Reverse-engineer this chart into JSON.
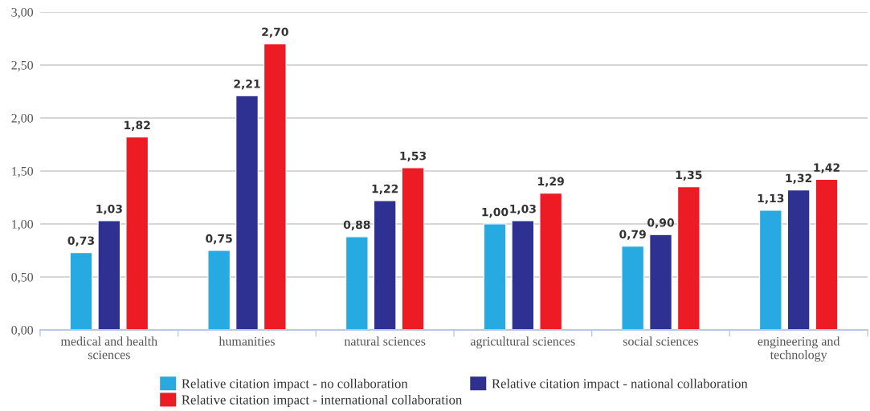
{
  "chart_data": {
    "type": "bar",
    "categories": [
      "medical and health sciences",
      "humanities",
      "natural sciences",
      "agricultural sciences",
      "social sciences",
      "engineering and technology"
    ],
    "series": [
      {
        "name": "Relative citation impact - no collaboration",
        "color": "#27aae1",
        "values": [
          0.73,
          0.75,
          0.88,
          1.0,
          0.79,
          1.13
        ],
        "value_labels": [
          "0,73",
          "0,75",
          "0,88",
          "1,00",
          "0,79",
          "1,13"
        ]
      },
      {
        "name": "Relative citation impact - national collaboration",
        "color": "#2e3192",
        "values": [
          1.03,
          2.21,
          1.22,
          1.03,
          0.9,
          1.32
        ],
        "value_labels": [
          "1,03",
          "2,21",
          "1,22",
          "1,03",
          "0,90",
          "1,32"
        ]
      },
      {
        "name": "Relative citation impact - international collaboration",
        "color": "#ed1c24",
        "values": [
          1.82,
          2.7,
          1.53,
          1.29,
          1.35,
          1.42
        ],
        "value_labels": [
          "1,82",
          "2,70",
          "1,53",
          "1,29",
          "1,35",
          "1,42"
        ]
      }
    ],
    "ylim": [
      0,
      3
    ],
    "yticks": [
      {
        "value": 0,
        "label": "0,00"
      },
      {
        "value": 0.5,
        "label": "0,50"
      },
      {
        "value": 1,
        "label": "1,00"
      },
      {
        "value": 1.5,
        "label": "1,50"
      },
      {
        "value": 2,
        "label": "2,00"
      },
      {
        "value": 2.5,
        "label": "2,50"
      },
      {
        "value": 3,
        "label": "3,00"
      }
    ],
    "grid": "y",
    "legend": "bottom"
  }
}
